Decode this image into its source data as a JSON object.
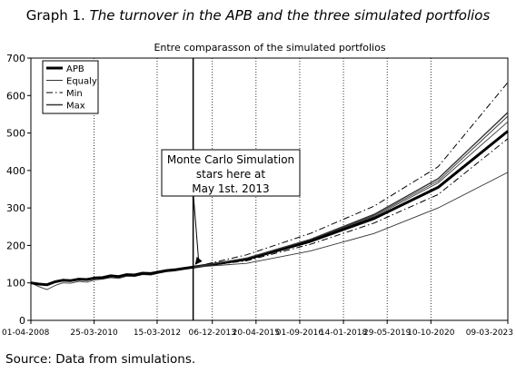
{
  "figure": {
    "number_label": "Graph 1.",
    "caption_text": "The turnover in the APB and the three simulated portfolios",
    "source_note": "Source: Data from simulations."
  },
  "chart_data": {
    "type": "line",
    "title": "Entre comparasson of the simulated portfolios",
    "xlabel": "",
    "ylabel": "",
    "x_ticks": [
      "01-04-2008",
      "25-03-2010",
      "15-03-2012",
      "06-12-2013",
      "20-04-2015",
      "01-09-2016",
      "14-01-2018",
      "29-05-2019",
      "10-10-2020",
      "09-03-2023"
    ],
    "x_range": [
      "2008-04-01",
      "2023-03-09"
    ],
    "ylim": [
      0,
      700
    ],
    "y_ticks": [
      0,
      100,
      200,
      300,
      400,
      500,
      600,
      700
    ],
    "grid": "vertical dotted",
    "legend_placement": "top-left",
    "simulation_start": "2013-05-01",
    "annotation": {
      "text_lines": [
        "Monte Carlo Simulation",
        "stars here at",
        "May 1st. 2013"
      ]
    },
    "historical": {
      "x": [
        "2008-04-01",
        "2008-07-01",
        "2008-10-01",
        "2009-01-01",
        "2009-04-01",
        "2009-07-01",
        "2009-10-01",
        "2010-01-01",
        "2010-04-01",
        "2010-07-01",
        "2010-10-01",
        "2011-01-01",
        "2011-04-01",
        "2011-07-01",
        "2011-10-01",
        "2012-01-01",
        "2012-04-01",
        "2012-07-01",
        "2012-10-01",
        "2013-01-01",
        "2013-05-01"
      ],
      "values": [
        100,
        97,
        95,
        103,
        107,
        106,
        110,
        109,
        113,
        114,
        119,
        117,
        122,
        121,
        126,
        125,
        129,
        133,
        135,
        138,
        142
      ],
      "min_dip_values": [
        100,
        90,
        82,
        93,
        100,
        99,
        104,
        102,
        108,
        110,
        114,
        112,
        118,
        117,
        122,
        121,
        126,
        130,
        132,
        136,
        142
      ]
    },
    "series": [
      {
        "name": "APB",
        "style": "thick-solid",
        "x": [
          "2013-05-01",
          "2015-01-01",
          "2017-01-01",
          "2019-01-01",
          "2021-01-01",
          "2023-03-09"
        ],
        "values": [
          142,
          163,
          211,
          272,
          355,
          505
        ]
      },
      {
        "name": "Equaly",
        "style": "thin-solid",
        "x": [
          "2013-05-01",
          "2015-01-01",
          "2017-01-01",
          "2019-01-01",
          "2021-01-01",
          "2023-03-09"
        ],
        "values": [
          142,
          152,
          185,
          232,
          300,
          395
        ]
      },
      {
        "name": "Min",
        "style": "dash-dot",
        "x": [
          "2013-05-01",
          "2015-01-01",
          "2017-01-01",
          "2019-01-01",
          "2021-01-01",
          "2023-03-09"
        ],
        "values": [
          142,
          175,
          232,
          305,
          410,
          635
        ]
      },
      {
        "name": "Max",
        "style": "medium-solid",
        "x": [
          "2013-05-01",
          "2015-01-01",
          "2017-01-01",
          "2019-01-01",
          "2021-01-01",
          "2023-03-09"
        ],
        "values": [
          142,
          166,
          216,
          283,
          378,
          555
        ]
      }
    ],
    "extra_unlabeled_lines": [
      {
        "style": "thin-solid",
        "x": [
          "2013-05-01",
          "2015-01-01",
          "2017-01-01",
          "2019-01-01",
          "2021-01-01",
          "2023-03-09"
        ],
        "values": [
          142,
          165,
          213,
          277,
          367,
          530
        ]
      },
      {
        "style": "thin-solid",
        "x": [
          "2013-05-01",
          "2015-01-01",
          "2017-01-01",
          "2019-01-01",
          "2021-01-01",
          "2023-03-09"
        ],
        "values": [
          142,
          164,
          214,
          280,
          372,
          545
        ]
      },
      {
        "style": "dash-dot",
        "x": [
          "2013-05-01",
          "2015-01-01",
          "2017-01-01",
          "2019-01-01",
          "2021-01-01",
          "2023-03-09"
        ],
        "values": [
          142,
          159,
          203,
          260,
          336,
          485
        ]
      }
    ]
  }
}
